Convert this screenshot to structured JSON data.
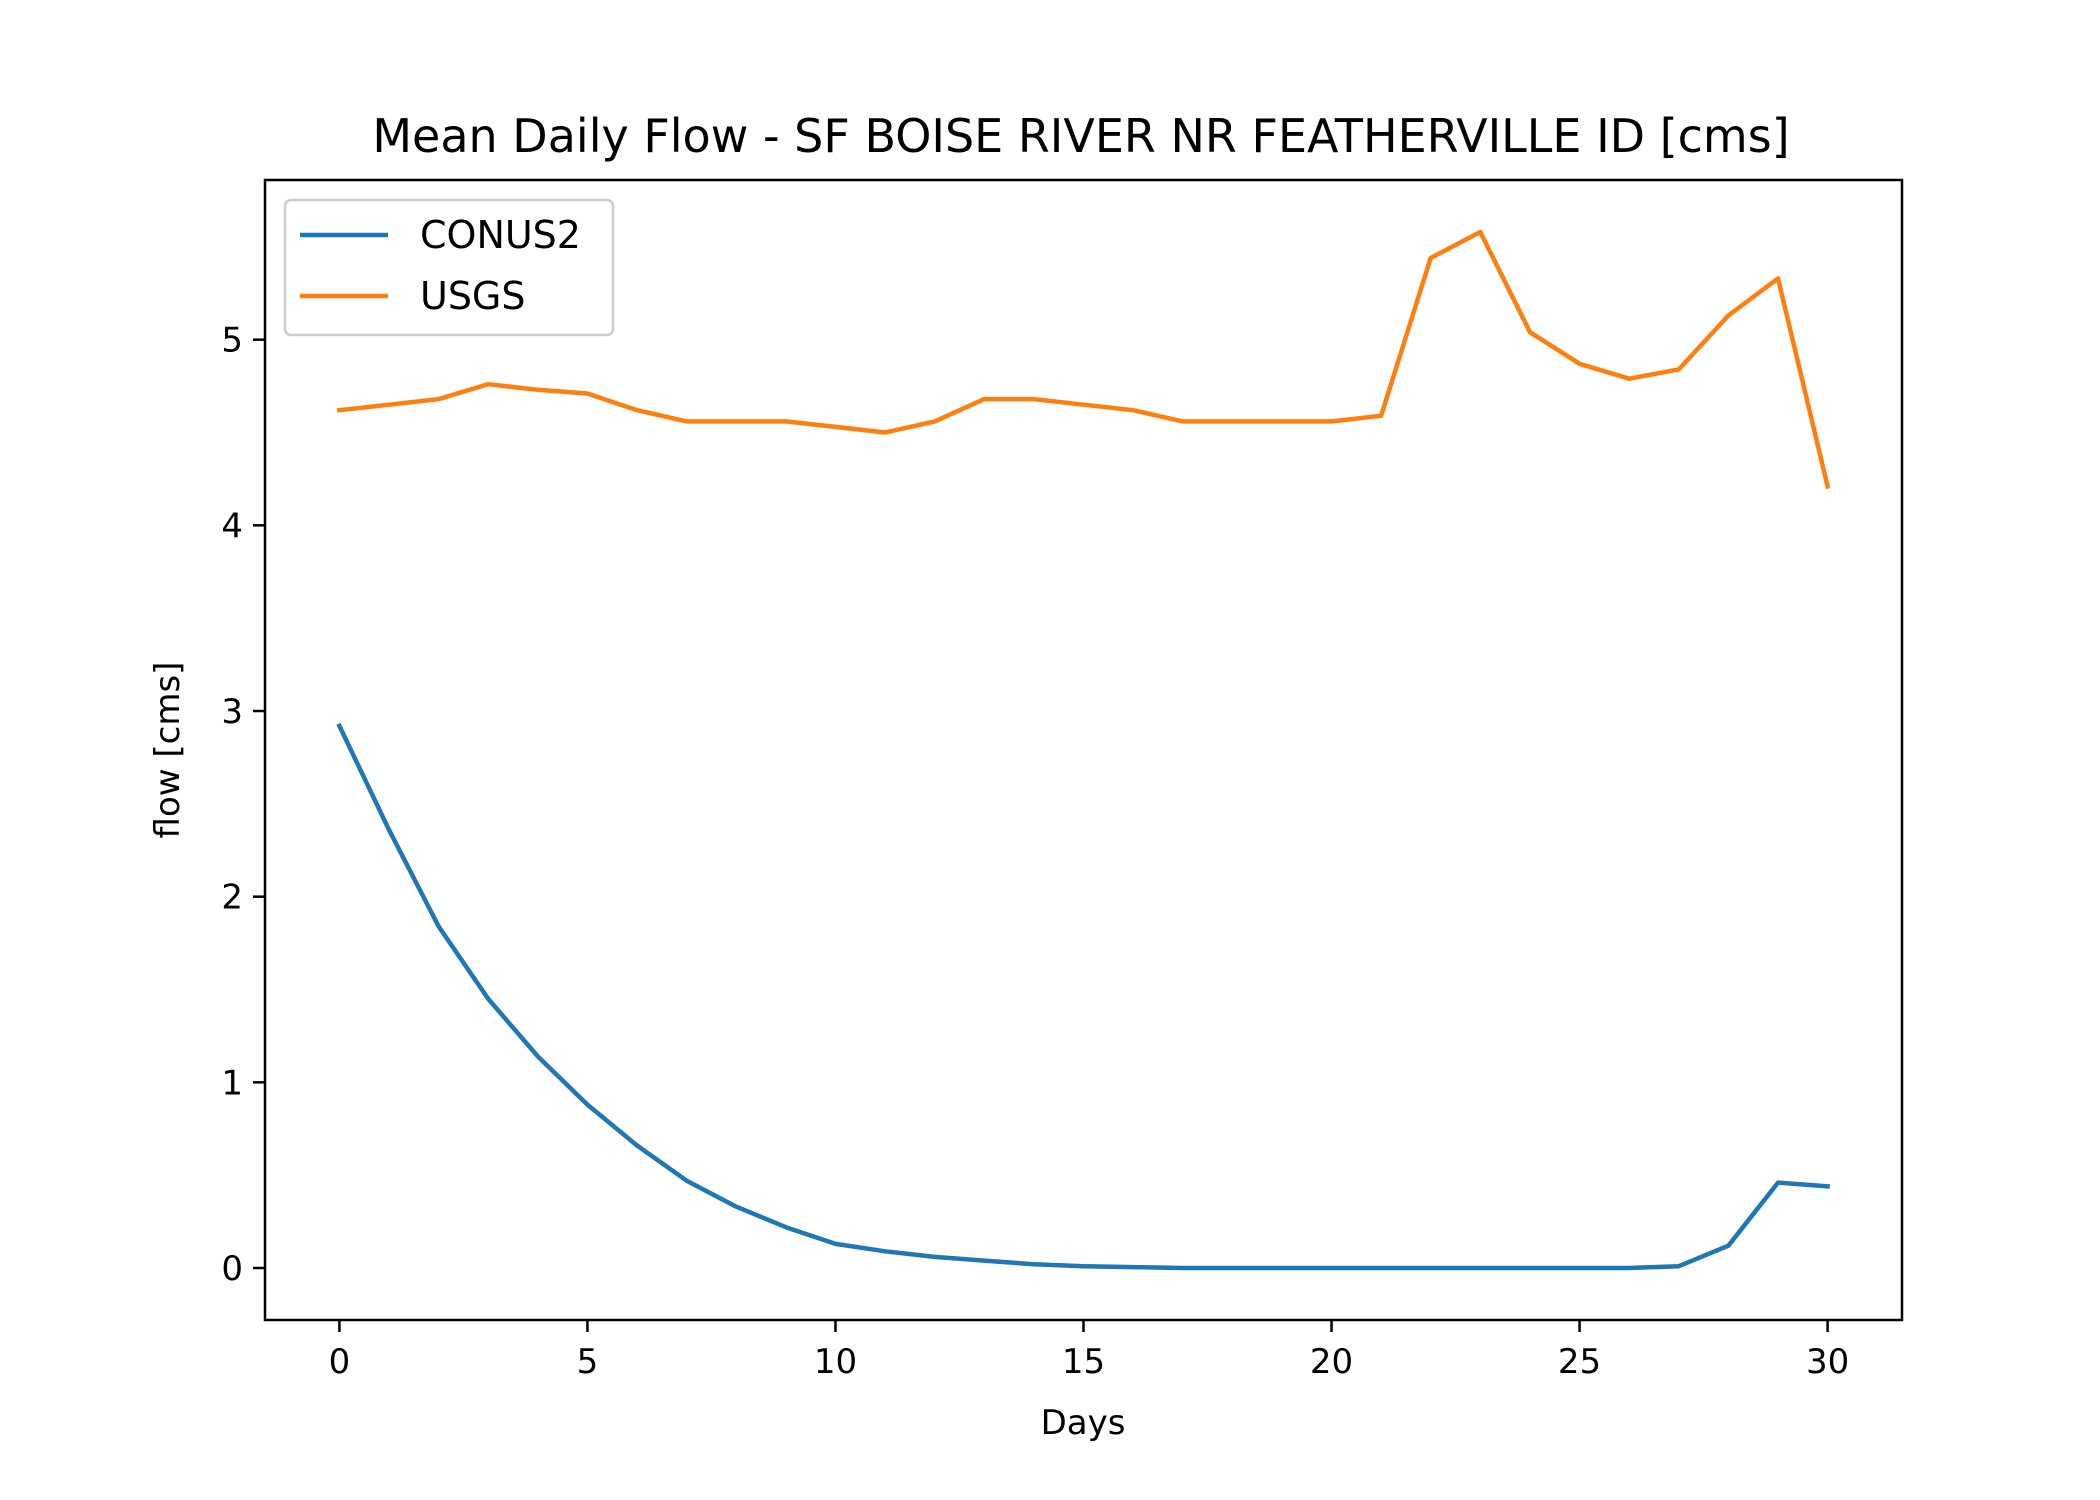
{
  "chart_data": {
    "type": "line",
    "title": "Mean Daily Flow - SF BOISE RIVER NR FEATHERVILLE ID [cms]",
    "xlabel": "Days",
    "ylabel": "flow [cms]",
    "xlim": [
      -1.5,
      31.5
    ],
    "ylim": [
      -0.28,
      5.86
    ],
    "xticks": [
      0,
      5,
      10,
      15,
      20,
      25,
      30
    ],
    "yticks": [
      0,
      1,
      2,
      3,
      4,
      5
    ],
    "grid": false,
    "legend_position": "top-left",
    "x": [
      0,
      1,
      2,
      3,
      4,
      5,
      6,
      7,
      8,
      9,
      10,
      11,
      12,
      13,
      14,
      15,
      16,
      17,
      18,
      19,
      20,
      21,
      22,
      23,
      24,
      25,
      26,
      27,
      28,
      29,
      30
    ],
    "series": [
      {
        "name": "CONUS2",
        "color": "#1f77b4",
        "values": [
          2.92,
          2.36,
          1.84,
          1.45,
          1.14,
          0.88,
          0.66,
          0.47,
          0.33,
          0.22,
          0.13,
          0.09,
          0.06,
          0.04,
          0.02,
          0.01,
          0.005,
          0.0,
          0.0,
          0.0,
          0.0,
          0.0,
          0.0,
          0.0,
          0.0,
          0.0,
          0.0,
          0.01,
          0.12,
          0.46,
          0.44
        ]
      },
      {
        "name": "USGS",
        "color": "#ff7f0e",
        "values": [
          4.62,
          4.65,
          4.68,
          4.76,
          4.73,
          4.71,
          4.62,
          4.56,
          4.56,
          4.56,
          4.53,
          4.5,
          4.56,
          4.68,
          4.68,
          4.65,
          4.62,
          4.56,
          4.56,
          4.56,
          4.56,
          4.59,
          5.44,
          5.58,
          5.04,
          4.87,
          4.79,
          4.84,
          5.13,
          5.33,
          4.21
        ]
      }
    ]
  }
}
